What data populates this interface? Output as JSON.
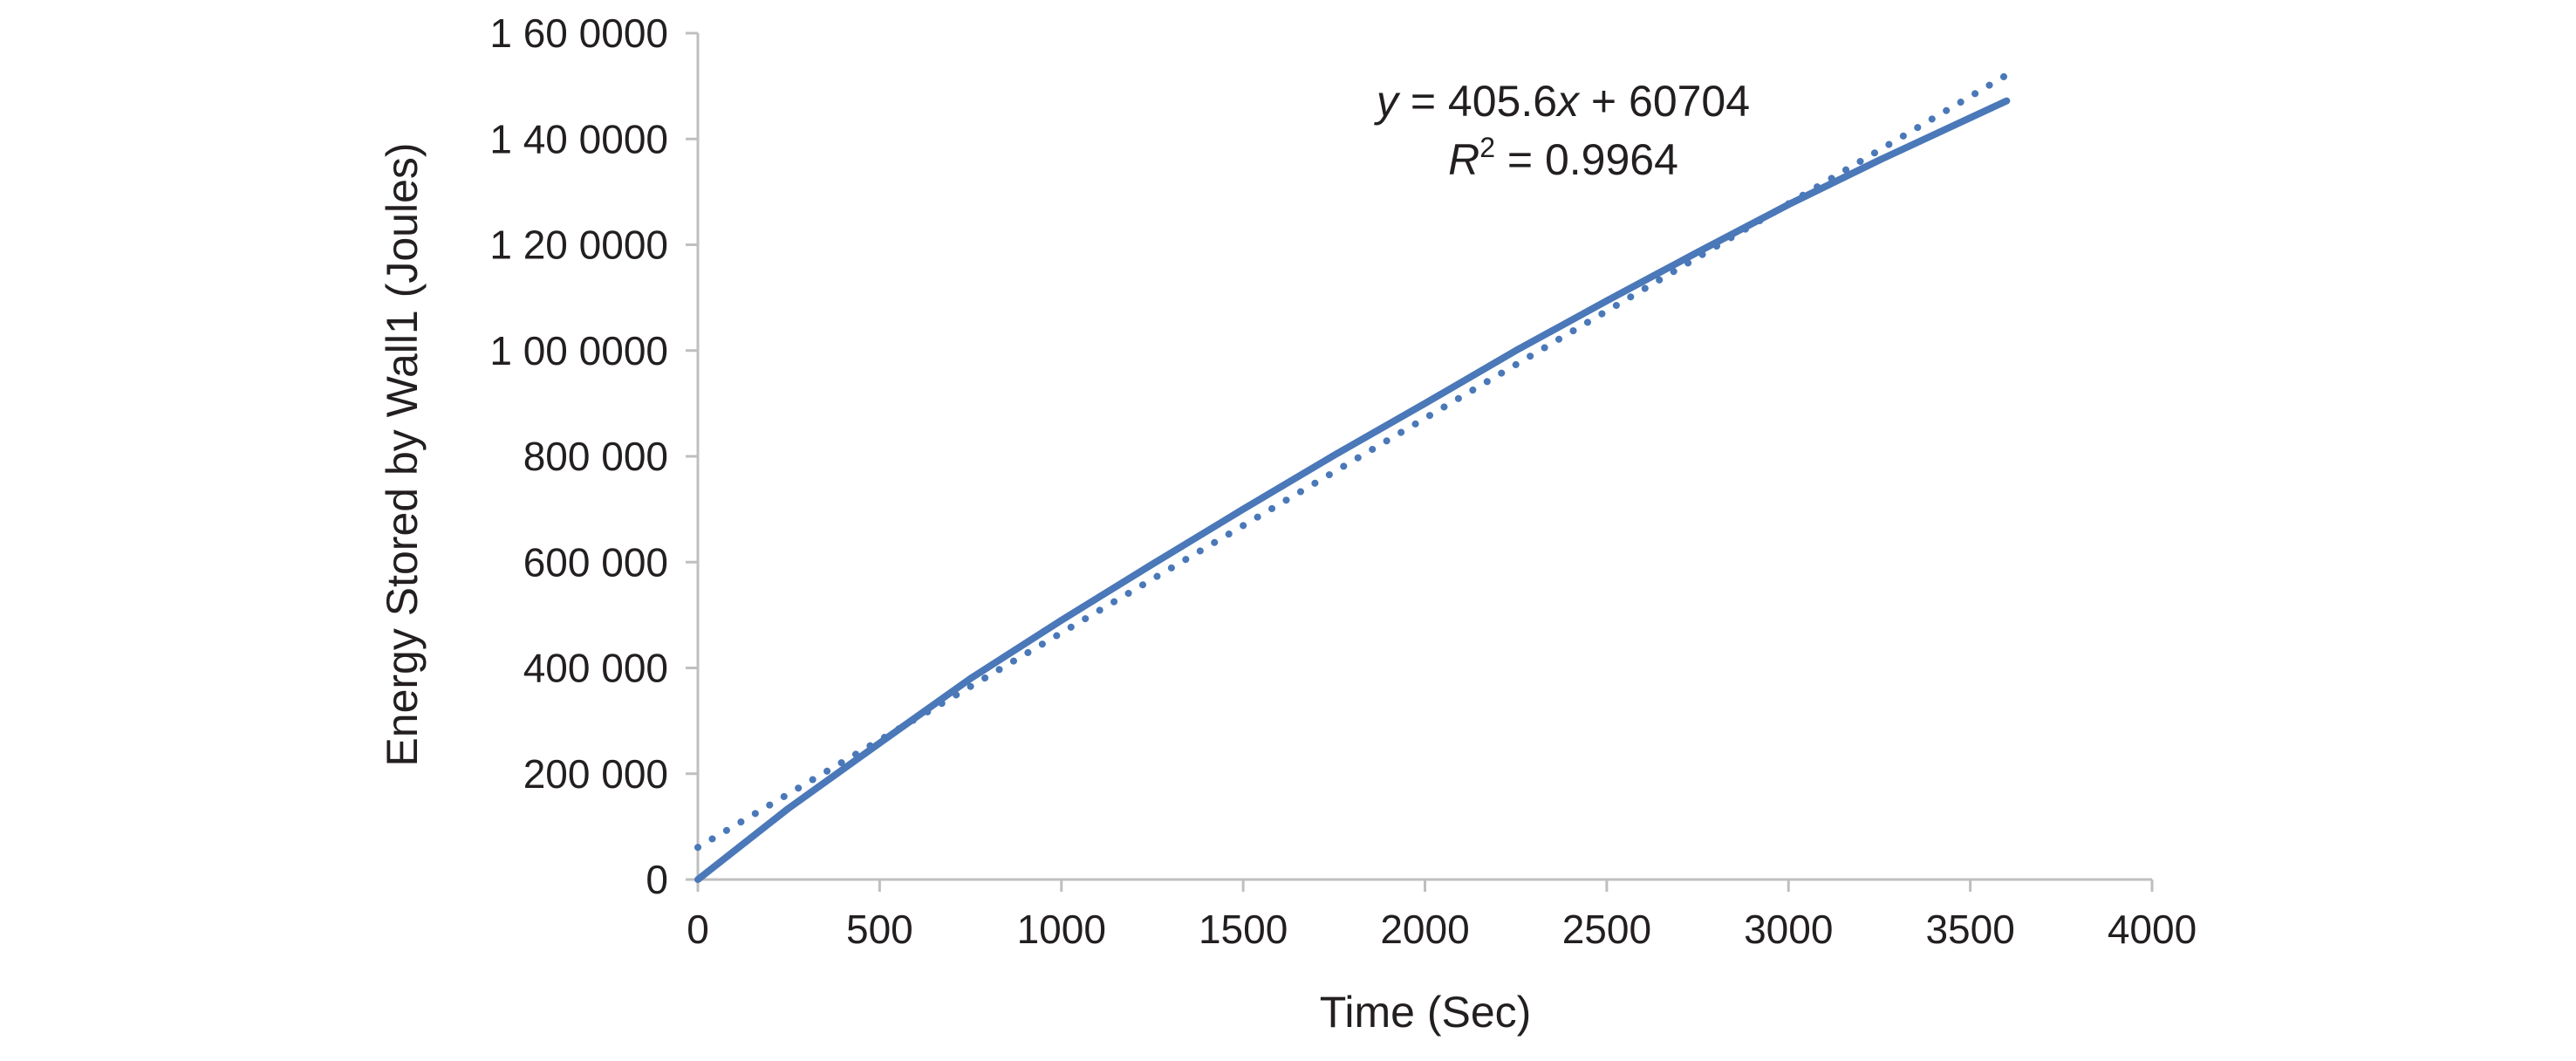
{
  "chart_data": {
    "type": "line",
    "title": "",
    "xlabel": "Time (Sec)",
    "ylabel": "Energy Stored by Wall1 (Joules)",
    "xlim": [
      0,
      4000
    ],
    "ylim": [
      0,
      1600000
    ],
    "x_ticks": [
      {
        "value": 0,
        "label": "0"
      },
      {
        "value": 500,
        "label": "500"
      },
      {
        "value": 1000,
        "label": "1000"
      },
      {
        "value": 1500,
        "label": "1500"
      },
      {
        "value": 2000,
        "label": "2000"
      },
      {
        "value": 2500,
        "label": "2500"
      },
      {
        "value": 3000,
        "label": "3000"
      },
      {
        "value": 3500,
        "label": "3500"
      },
      {
        "value": 4000,
        "label": "4000"
      }
    ],
    "y_ticks": [
      {
        "value": 0,
        "label": "0"
      },
      {
        "value": 200000,
        "label": "200 000"
      },
      {
        "value": 400000,
        "label": "400 000"
      },
      {
        "value": 600000,
        "label": "600 000"
      },
      {
        "value": 800000,
        "label": "800 000"
      },
      {
        "value": 1000000,
        "label": "1 00 0000"
      },
      {
        "value": 1200000,
        "label": "1 20 0000"
      },
      {
        "value": 1400000,
        "label": "1 40 0000"
      },
      {
        "value": 1600000,
        "label": "1 60 0000"
      }
    ],
    "grid": false,
    "legend": "none",
    "series": [
      {
        "style": "solid",
        "color": "#4a78b8",
        "x": [
          0,
          250,
          500,
          750,
          1000,
          1250,
          1500,
          1750,
          2000,
          2250,
          2500,
          2750,
          3000,
          3250,
          3500,
          3600
        ],
        "y": [
          0,
          135000,
          258000,
          380000,
          490000,
          596000,
          700000,
          802000,
          900000,
          1000000,
          1094000,
          1186000,
          1276000,
          1360000,
          1440000,
          1472000
        ]
      }
    ],
    "trendline": {
      "style": "dotted",
      "color": "#4a78b8",
      "slope": 405.6,
      "intercept": 60704,
      "x_range": [
        0,
        3600
      ]
    },
    "annotations": {
      "equation": {
        "y_var": "y",
        "equals_coef": " = 405.6",
        "x_var": "x",
        "rest": " + 60704"
      },
      "r_squared": {
        "r": "R",
        "sup": "2",
        "rest": " = 0.9964"
      }
    }
  }
}
